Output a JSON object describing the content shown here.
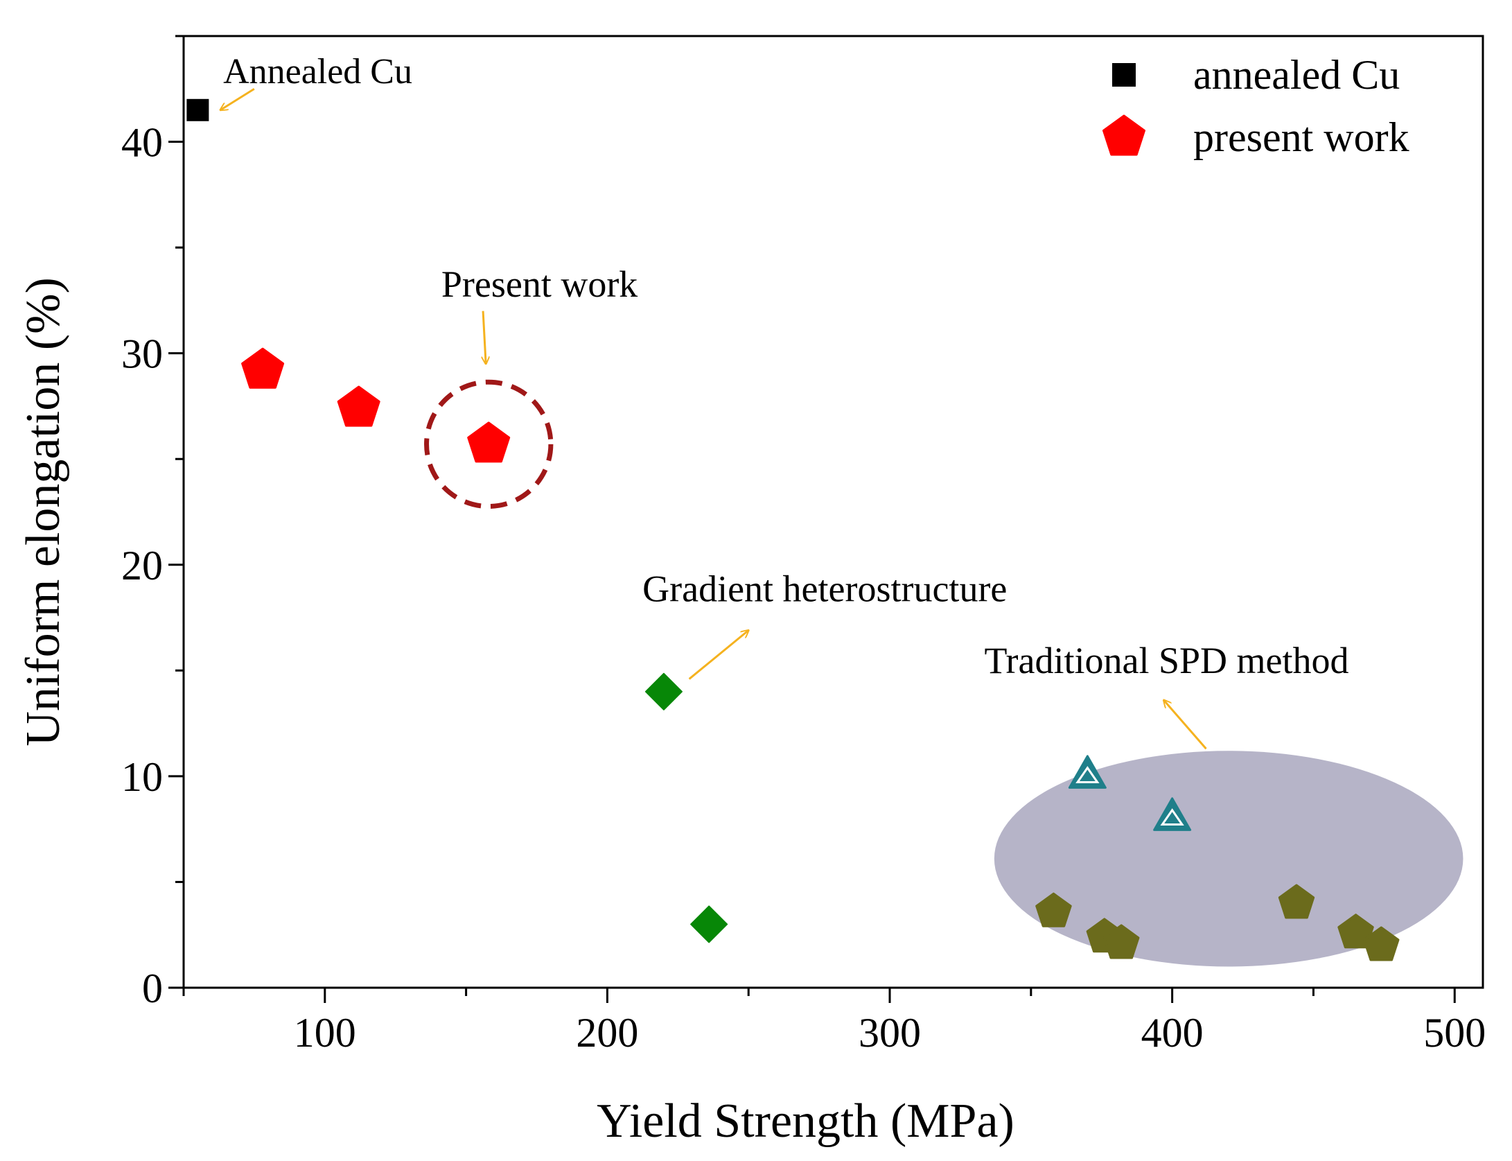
{
  "chart_data": {
    "type": "scatter",
    "title": "",
    "xlabel": "Yield Strength (MPa)",
    "ylabel": "Uniform elongation (%)",
    "xlim": [
      50,
      510
    ],
    "ylim": [
      0,
      45
    ],
    "xticks": [
      100,
      200,
      300,
      400,
      500
    ],
    "yticks": [
      0,
      10,
      20,
      30,
      40
    ],
    "grid": false,
    "legend_position": "top-right",
    "series": [
      {
        "name": "annealed Cu",
        "marker": "square",
        "color": "#000000",
        "in_legend": true,
        "points": [
          {
            "x": 55,
            "y": 41.5
          }
        ]
      },
      {
        "name": "present work",
        "marker": "pentagon",
        "color": "#ff0000",
        "in_legend": true,
        "points": [
          {
            "x": 78,
            "y": 29.2
          },
          {
            "x": 112,
            "y": 27.4
          },
          {
            "x": 158,
            "y": 25.7
          }
        ]
      },
      {
        "name": "Gradient heterostructure",
        "marker": "diamond",
        "color": "#078707",
        "in_legend": false,
        "points": [
          {
            "x": 220,
            "y": 14.0
          },
          {
            "x": 236,
            "y": 3.0
          }
        ]
      },
      {
        "name": "Traditional SPD method (triangles)",
        "marker": "triangle",
        "color": "#1f7f8a",
        "in_legend": false,
        "points": [
          {
            "x": 370,
            "y": 10.1
          },
          {
            "x": 400,
            "y": 8.1
          }
        ]
      },
      {
        "name": "Traditional SPD method (pentagons)",
        "marker": "pentagon",
        "color": "#6b6b1c",
        "in_legend": false,
        "points": [
          {
            "x": 358,
            "y": 3.6
          },
          {
            "x": 376,
            "y": 2.4
          },
          {
            "x": 382,
            "y": 2.1
          },
          {
            "x": 444,
            "y": 4.0
          },
          {
            "x": 465,
            "y": 2.6
          },
          {
            "x": 474,
            "y": 2.0
          }
        ]
      }
    ],
    "highlights": [
      {
        "kind": "dashed-circle",
        "around": {
          "x": 158,
          "y": 25.7
        },
        "radius_data_x": 22,
        "color": "#a01818"
      },
      {
        "kind": "ellipse",
        "center": {
          "x": 420,
          "y": 6.1
        },
        "radius_x": 83,
        "radius_y": 5.1,
        "color": "#b2b0c5"
      }
    ],
    "annotations": [
      {
        "text": "Annealed Cu",
        "anchor": {
          "x": 64,
          "y": 43.3
        },
        "arrow_from": {
          "x": 75,
          "y": 42.5
        },
        "arrow_to": {
          "x": 63,
          "y": 41.5
        }
      },
      {
        "text": "Present work",
        "anchor": {
          "x": 176,
          "y": 33.2
        },
        "arrow_from": {
          "x": 156,
          "y": 32.0
        },
        "arrow_to": {
          "x": 157,
          "y": 29.5
        }
      },
      {
        "text": "Gradient heterostructure",
        "anchor": {
          "x": 277,
          "y": 18.8
        },
        "arrow_from": {
          "x": 229,
          "y": 14.6
        },
        "arrow_to": {
          "x": 250,
          "y": 16.9
        }
      },
      {
        "text": "Traditional SPD method",
        "anchor": {
          "x": 398,
          "y": 15.4
        },
        "arrow_from": {
          "x": 412,
          "y": 11.3
        },
        "arrow_to": {
          "x": 397,
          "y": 13.6
        }
      }
    ]
  },
  "colors": {
    "axis": "#000000",
    "arrow": "#f5b21f",
    "annotation_text": "#000000"
  }
}
